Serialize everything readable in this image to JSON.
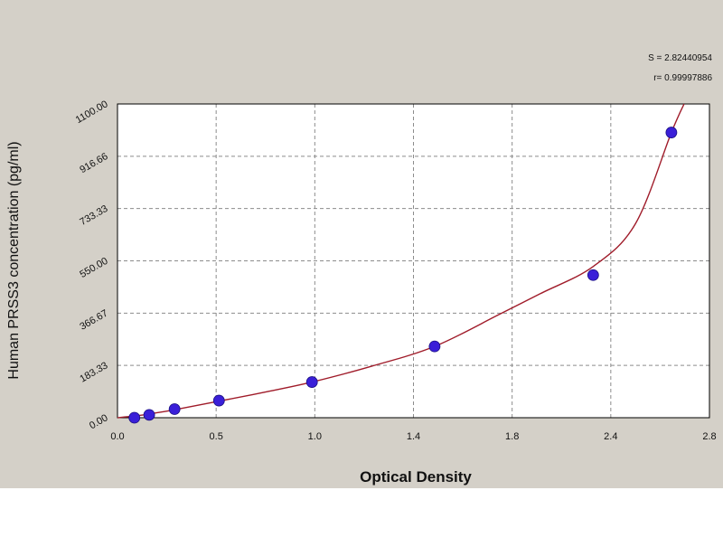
{
  "colors": {
    "panel_background": "#d4d0c8",
    "plot_background": "#ffffff",
    "grid": "#8c8c8c",
    "curve": "#a01c2a",
    "points": "#3a1fd8",
    "text": "#111111"
  },
  "stats": {
    "s_line": "S = 2.82440954",
    "r_line": "r= 0.99997886"
  },
  "chart_data": {
    "type": "scatter",
    "xlabel": "Optical Density",
    "ylabel": "Human PRSS3 concentration (pg/ml)",
    "xlim": [
      0.0,
      2.8
    ],
    "ylim": [
      0.0,
      1100.0
    ],
    "x_ticks": [
      "0.0",
      "0.5",
      "1.0",
      "1.4",
      "1.8",
      "2.4",
      "2.8"
    ],
    "y_ticks": [
      "0.00",
      "183.33",
      "366.67",
      "550.00",
      "733.33",
      "916.66",
      "1100.00"
    ],
    "grid": true,
    "series": [
      {
        "kind": "points",
        "x": [
          0.08,
          0.15,
          0.27,
          0.48,
          0.92,
          1.5,
          2.25,
          2.62
        ],
        "y": [
          0,
          10,
          30,
          60,
          125,
          250,
          500,
          1000
        ]
      },
      {
        "kind": "fit-curve",
        "x": [
          0.0,
          0.08,
          0.15,
          0.27,
          0.48,
          0.7,
          0.92,
          1.2,
          1.5,
          1.8,
          2.0,
          2.25,
          2.45,
          2.62,
          2.68
        ],
        "y": [
          0,
          6,
          13,
          28,
          58,
          90,
          125,
          180,
          250,
          360,
          435,
          530,
          680,
          1000,
          1100
        ]
      }
    ]
  }
}
